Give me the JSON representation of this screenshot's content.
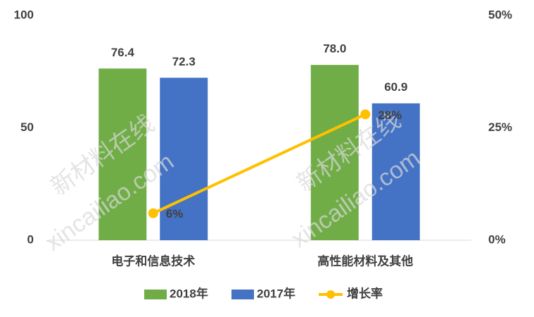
{
  "chart_data": {
    "type": "bar",
    "categories": [
      "电子和信息技术",
      "高性能材料及其他"
    ],
    "series": [
      {
        "name": "2018年",
        "color": "#70ad47",
        "values": [
          76.4,
          78.0
        ],
        "value_labels": [
          "76.4",
          "78.0"
        ]
      },
      {
        "name": "2017年",
        "color": "#4472c4",
        "values": [
          72.3,
          60.9
        ]
      },
      {
        "name": "增长率",
        "type": "line",
        "axis": "y2",
        "color": "#ffc000",
        "values": [
          6,
          28
        ],
        "value_labels": [
          "6%",
          "28%"
        ]
      }
    ],
    "ylim": [
      0,
      100
    ],
    "yticks": [
      0,
      50,
      100
    ],
    "y2lim": [
      0,
      50
    ],
    "y2ticks": [
      {
        "value": 0,
        "label": "0%"
      },
      {
        "value": 25,
        "label": "25%"
      },
      {
        "value": 50,
        "label": "50%"
      }
    ],
    "grid": false,
    "legend": "bottom",
    "watermark": [
      "新材料在线",
      "xincailiao.com"
    ]
  }
}
